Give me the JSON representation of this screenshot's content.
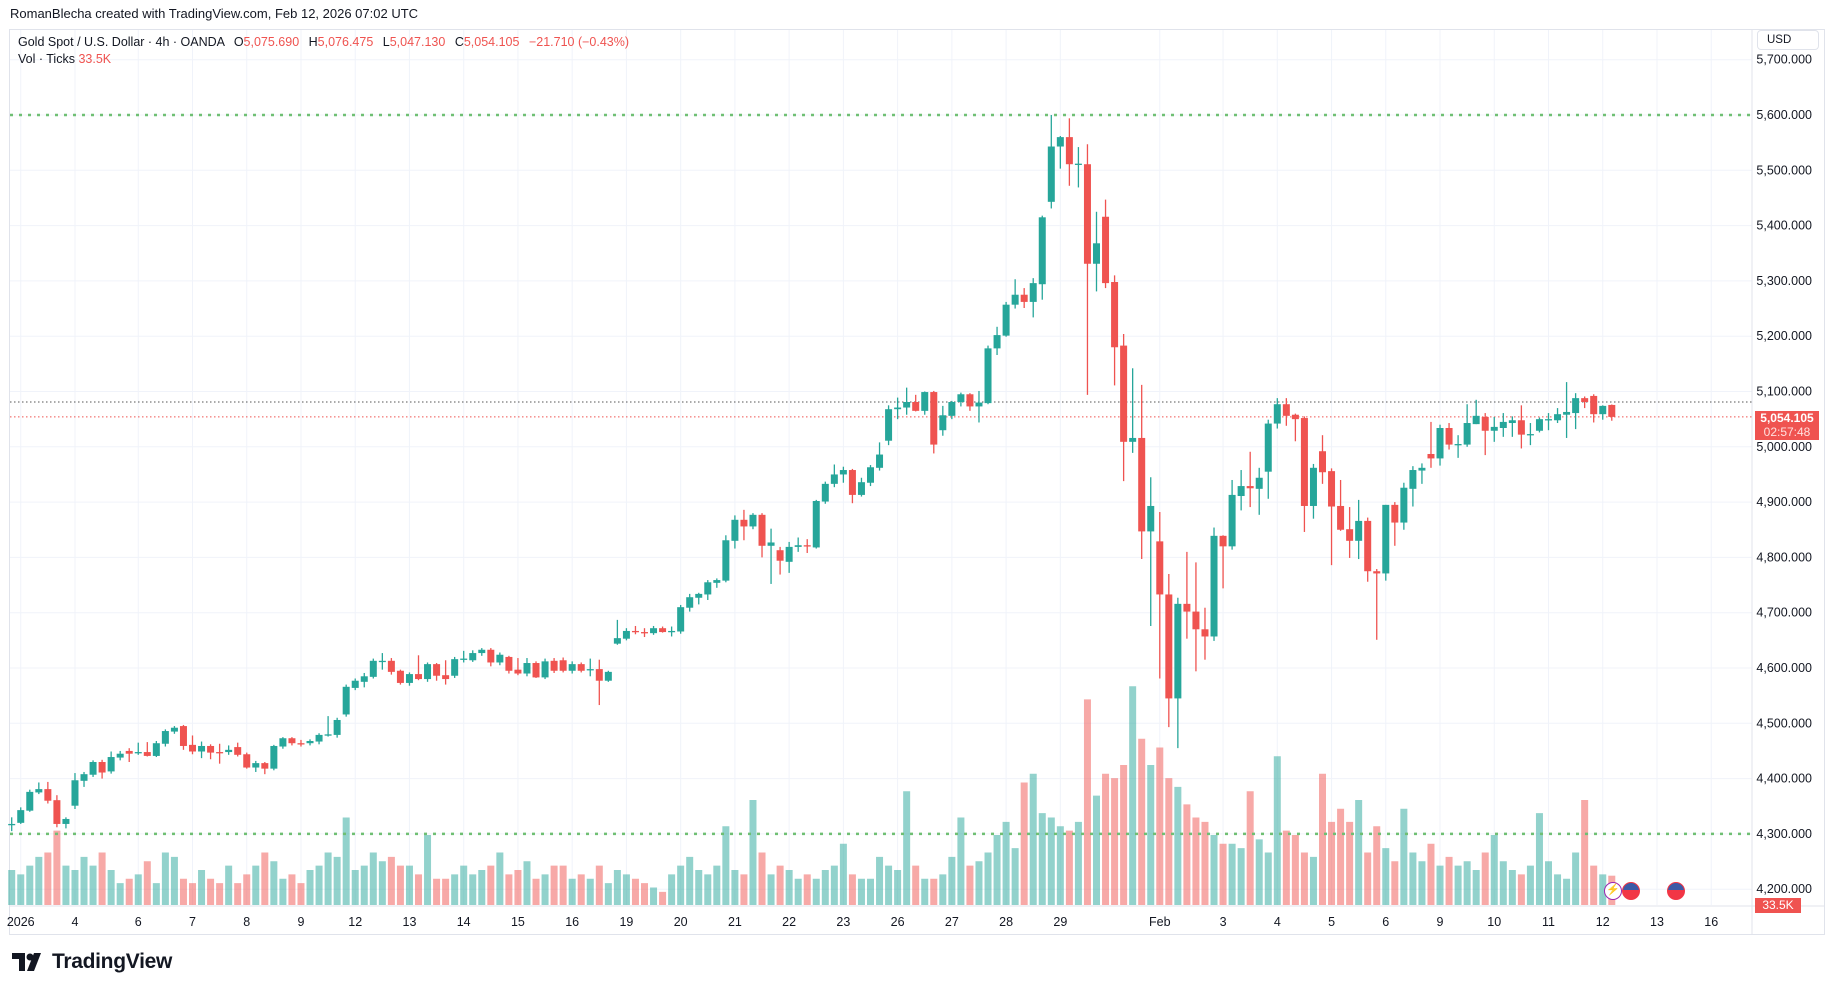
{
  "credit": "RomanBlecha created with TradingView.com, Feb 12, 2026 07:02 UTC",
  "legend": {
    "symbol": "Gold Spot / U.S. Dollar · 4h · OANDA",
    "o_label": "O",
    "o": "5,075.690",
    "h_label": "H",
    "h": "5,076.475",
    "l_label": "L",
    "l": "5,047.130",
    "c_label": "C",
    "c": "5,054.105",
    "change": "−21.710 (−0.43%)",
    "vol_label": "Vol · Ticks",
    "vol": "33.5K"
  },
  "currency": "USD",
  "price_badge": {
    "price": "5,054.105",
    "countdown": "02:57:48"
  },
  "volume_badge": "33.5K",
  "logo_text": "TradingView",
  "colors": {
    "up": "#26a69a",
    "down": "#ef5350",
    "up_volume": "rgba(38,166,154,0.5)",
    "down_volume": "rgba(239,83,80,0.5)",
    "alert_line": "#6fbf73",
    "grid": "#f0f3fa"
  },
  "events": [
    {
      "icon": "lightning-icon",
      "color": "#9c27b0"
    },
    {
      "icon": "us-flag-icon",
      "color": "#f23645"
    },
    {
      "icon": "us-flag-icon",
      "color": "#f23645"
    }
  ],
  "chart_data": {
    "type": "candlestick",
    "title": "Gold Spot / U.S. Dollar · 4h · OANDA",
    "ylabel": "USD",
    "ylim": [
      4200,
      5700
    ],
    "grid": true,
    "y_ticks": [
      "5,700.000",
      "5,600.000",
      "5,500.000",
      "5,400.000",
      "5,300.000",
      "5,200.000",
      "5,100.000",
      "5,000.000",
      "4,900.000",
      "4,800.000",
      "4,700.000",
      "4,600.000",
      "4,500.000",
      "4,400.000",
      "4,300.000",
      "4,200.000"
    ],
    "x_ticks": [
      {
        "label": "2026",
        "candle": 1
      },
      {
        "label": "4",
        "candle": 7
      },
      {
        "label": "6",
        "candle": 14
      },
      {
        "label": "7",
        "candle": 20
      },
      {
        "label": "8",
        "candle": 26
      },
      {
        "label": "9",
        "candle": 32
      },
      {
        "label": "12",
        "candle": 38
      },
      {
        "label": "13",
        "candle": 44
      },
      {
        "label": "14",
        "candle": 50
      },
      {
        "label": "15",
        "candle": 56
      },
      {
        "label": "16",
        "candle": 62
      },
      {
        "label": "19",
        "candle": 68
      },
      {
        "label": "20",
        "candle": 74
      },
      {
        "label": "21",
        "candle": 80
      },
      {
        "label": "22",
        "candle": 86
      },
      {
        "label": "23",
        "candle": 92
      },
      {
        "label": "26",
        "candle": 98
      },
      {
        "label": "27",
        "candle": 104
      },
      {
        "label": "28",
        "candle": 110
      },
      {
        "label": "29",
        "candle": 116
      },
      {
        "label": "Feb",
        "candle": 127
      },
      {
        "label": "3",
        "candle": 134
      },
      {
        "label": "4",
        "candle": 140
      },
      {
        "label": "5",
        "candle": 146
      },
      {
        "label": "6",
        "candle": 152
      },
      {
        "label": "9",
        "candle": 158
      },
      {
        "label": "10",
        "candle": 164
      },
      {
        "label": "11",
        "candle": 170
      },
      {
        "label": "12",
        "candle": 176
      },
      {
        "label": "13",
        "candle": 182
      },
      {
        "label": "16",
        "candle": 188
      }
    ],
    "horizontal_lines": [
      {
        "price": 5600,
        "style": "dotted",
        "color": "#6fbf73"
      },
      {
        "price": 4300,
        "style": "dotted",
        "color": "#6fbf73"
      },
      {
        "price": 5081,
        "style": "dotted",
        "color": "#555555"
      },
      {
        "price": 5054.105,
        "style": "dotted",
        "color": "#ef5350"
      }
    ],
    "ohlc": [
      [
        4317,
        4330,
        4305,
        4318
      ],
      [
        4320,
        4348,
        4318,
        4343
      ],
      [
        4342,
        4380,
        4340,
        4376
      ],
      [
        4375,
        4393,
        4372,
        4381
      ],
      [
        4381,
        4394,
        4355,
        4360
      ],
      [
        4361,
        4370,
        4312,
        4318
      ],
      [
        4318,
        4330,
        4310,
        4327
      ],
      [
        4351,
        4410,
        4345,
        4397
      ],
      [
        4396,
        4412,
        4385,
        4408
      ],
      [
        4407,
        4433,
        4403,
        4430
      ],
      [
        4430,
        4434,
        4400,
        4411
      ],
      [
        4413,
        4449,
        4409,
        4439
      ],
      [
        4438,
        4450,
        4433,
        4445
      ],
      [
        4450,
        4455,
        4430,
        4445
      ],
      [
        4447,
        4465,
        4443,
        4448
      ],
      [
        4448,
        4466,
        4440,
        4441
      ],
      [
        4441,
        4468,
        4439,
        4464
      ],
      [
        4463,
        4489,
        4458,
        4486
      ],
      [
        4485,
        4495,
        4481,
        4492
      ],
      [
        4495,
        4497,
        4452,
        4459
      ],
      [
        4461,
        4478,
        4444,
        4449
      ],
      [
        4449,
        4467,
        4437,
        4459
      ],
      [
        4459,
        4462,
        4435,
        4447
      ],
      [
        4448,
        4463,
        4427,
        4447
      ],
      [
        4448,
        4460,
        4443,
        4452
      ],
      [
        4457,
        4465,
        4440,
        4443
      ],
      [
        4444,
        4447,
        4418,
        4420
      ],
      [
        4420,
        4432,
        4412,
        4428
      ],
      [
        4428,
        4430,
        4408,
        4418
      ],
      [
        4418,
        4461,
        4415,
        4459
      ],
      [
        4458,
        4475,
        4454,
        4473
      ],
      [
        4473,
        4475,
        4460,
        4464
      ],
      [
        4464,
        4470,
        4458,
        4463
      ],
      [
        4464,
        4471,
        4460,
        4468
      ],
      [
        4467,
        4482,
        4462,
        4479
      ],
      [
        4479,
        4513,
        4476,
        4480
      ],
      [
        4479,
        4510,
        4474,
        4506
      ],
      [
        4516,
        4570,
        4512,
        4566
      ],
      [
        4564,
        4581,
        4560,
        4577
      ],
      [
        4575,
        4591,
        4565,
        4585
      ],
      [
        4584,
        4617,
        4581,
        4613
      ],
      [
        4612,
        4627,
        4597,
        4613
      ],
      [
        4613,
        4618,
        4588,
        4593
      ],
      [
        4595,
        4597,
        4570,
        4573
      ],
      [
        4573,
        4592,
        4568,
        4589
      ],
      [
        4589,
        4623,
        4578,
        4580
      ],
      [
        4580,
        4610,
        4575,
        4607
      ],
      [
        4607,
        4609,
        4577,
        4586
      ],
      [
        4587,
        4614,
        4570,
        4580
      ],
      [
        4586,
        4620,
        4582,
        4616
      ],
      [
        4616,
        4631,
        4610,
        4617
      ],
      [
        4614,
        4632,
        4611,
        4627
      ],
      [
        4627,
        4636,
        4622,
        4633
      ],
      [
        4633,
        4636,
        4603,
        4610
      ],
      [
        4610,
        4628,
        4605,
        4624
      ],
      [
        4620,
        4622,
        4590,
        4595
      ],
      [
        4597,
        4618,
        4587,
        4590
      ],
      [
        4590,
        4618,
        4585,
        4609
      ],
      [
        4609,
        4612,
        4582,
        4583
      ],
      [
        4583,
        4617,
        4580,
        4612
      ],
      [
        4613,
        4618,
        4591,
        4595
      ],
      [
        4614,
        4619,
        4592,
        4595
      ],
      [
        4595,
        4612,
        4590,
        4607
      ],
      [
        4607,
        4610,
        4592,
        4595
      ],
      [
        4598,
        4617,
        4585,
        4598
      ],
      [
        4598,
        4615,
        4533,
        4577
      ],
      [
        4577,
        4595,
        4575,
        4593
      ],
      [
        4644,
        4687,
        4642,
        4654
      ],
      [
        4653,
        4672,
        4650,
        4667
      ],
      [
        4667,
        4676,
        4661,
        4666
      ],
      [
        4665,
        4672,
        4656,
        4663
      ],
      [
        4663,
        4676,
        4660,
        4672
      ],
      [
        4672,
        4675,
        4664,
        4665
      ],
      [
        4666,
        4675,
        4657,
        4667
      ],
      [
        4666,
        4714,
        4662,
        4710
      ],
      [
        4709,
        4734,
        4702,
        4728
      ],
      [
        4727,
        4736,
        4715,
        4734
      ],
      [
        4733,
        4759,
        4723,
        4755
      ],
      [
        4754,
        4762,
        4745,
        4759
      ],
      [
        4758,
        4840,
        4755,
        4831
      ],
      [
        4830,
        4876,
        4816,
        4868
      ],
      [
        4868,
        4886,
        4831,
        4856
      ],
      [
        4856,
        4880,
        4851,
        4877
      ],
      [
        4877,
        4880,
        4800,
        4821
      ],
      [
        4821,
        4852,
        4752,
        4827
      ],
      [
        4813,
        4819,
        4769,
        4794
      ],
      [
        4792,
        4828,
        4772,
        4819
      ],
      [
        4819,
        4836,
        4810,
        4822
      ],
      [
        4822,
        4833,
        4808,
        4821
      ],
      [
        4818,
        4904,
        4816,
        4902
      ],
      [
        4901,
        4937,
        4897,
        4933
      ],
      [
        4933,
        4968,
        4927,
        4950
      ],
      [
        4950,
        4964,
        4935,
        4958
      ],
      [
        4958,
        4960,
        4898,
        4913
      ],
      [
        4913,
        4944,
        4910,
        4936
      ],
      [
        4935,
        4967,
        4929,
        4963
      ],
      [
        4962,
        5008,
        4957,
        4986
      ],
      [
        5011,
        5075,
        5003,
        5068
      ],
      [
        5068,
        5089,
        5050,
        5071
      ],
      [
        5071,
        5107,
        5058,
        5081
      ],
      [
        5081,
        5094,
        5064,
        5065
      ],
      [
        5065,
        5100,
        5058,
        5099
      ],
      [
        5099,
        5101,
        4988,
        5004
      ],
      [
        5030,
        5074,
        5020,
        5057
      ],
      [
        5056,
        5083,
        5050,
        5081
      ],
      [
        5081,
        5098,
        5073,
        5095
      ],
      [
        5095,
        5097,
        5065,
        5073
      ],
      [
        5073,
        5101,
        5044,
        5080
      ],
      [
        5079,
        5183,
        5077,
        5178
      ],
      [
        5178,
        5217,
        5166,
        5202
      ],
      [
        5201,
        5262,
        5199,
        5257
      ],
      [
        5257,
        5303,
        5250,
        5275
      ],
      [
        5275,
        5287,
        5251,
        5262
      ],
      [
        5262,
        5305,
        5234,
        5296
      ],
      [
        5294,
        5418,
        5266,
        5415
      ],
      [
        5443,
        5600,
        5431,
        5543
      ],
      [
        5543,
        5562,
        5503,
        5560
      ],
      [
        5560,
        5594,
        5472,
        5511
      ],
      [
        5511,
        5542,
        5469,
        5512
      ],
      [
        5511,
        5547,
        5094,
        5331
      ],
      [
        5331,
        5425,
        5281,
        5368
      ],
      [
        5416,
        5447,
        5287,
        5296
      ],
      [
        5298,
        5310,
        5111,
        5180
      ],
      [
        5183,
        5204,
        4938,
        5009
      ],
      [
        5009,
        5142,
        4989,
        5016
      ],
      [
        5016,
        5112,
        4797,
        4847
      ],
      [
        4847,
        4945,
        4676,
        4893
      ],
      [
        4829,
        4882,
        4581,
        4733
      ],
      [
        4733,
        4770,
        4493,
        4545
      ],
      [
        4545,
        4727,
        4455,
        4716
      ],
      [
        4716,
        4810,
        4653,
        4702
      ],
      [
        4702,
        4791,
        4594,
        4670
      ],
      [
        4670,
        4709,
        4615,
        4657
      ],
      [
        4657,
        4854,
        4649,
        4839
      ],
      [
        4839,
        4840,
        4744,
        4820
      ],
      [
        4820,
        4940,
        4814,
        4913
      ],
      [
        4911,
        4958,
        4885,
        4929
      ],
      [
        4929,
        4991,
        4891,
        4925
      ],
      [
        4924,
        4962,
        4877,
        4944
      ],
      [
        4955,
        5049,
        4906,
        5042
      ],
      [
        5042,
        5088,
        5033,
        5077
      ],
      [
        5077,
        5088,
        5038,
        5056
      ],
      [
        5058,
        5060,
        5010,
        5050
      ],
      [
        5052,
        5055,
        4846,
        4893
      ],
      [
        4893,
        4969,
        4870,
        4962
      ],
      [
        4992,
        5021,
        4933,
        4954
      ],
      [
        4956,
        4961,
        4786,
        4892
      ],
      [
        4893,
        4940,
        4848,
        4850
      ],
      [
        4851,
        4891,
        4799,
        4830
      ],
      [
        4830,
        4904,
        4797,
        4866
      ],
      [
        4866,
        4872,
        4756,
        4775
      ],
      [
        4775,
        4779,
        4651,
        4771
      ],
      [
        4771,
        4895,
        4758,
        4895
      ],
      [
        4895,
        4900,
        4821,
        4863
      ],
      [
        4863,
        4935,
        4850,
        4926
      ],
      [
        4924,
        4965,
        4892,
        4958
      ],
      [
        4957,
        4970,
        4933,
        4962
      ],
      [
        4987,
        5045,
        4962,
        4979
      ],
      [
        4979,
        5040,
        4966,
        5034
      ],
      [
        5034,
        5043,
        4995,
        5004
      ],
      [
        5005,
        5021,
        4980,
        5005
      ],
      [
        5004,
        5077,
        5000,
        5043
      ],
      [
        5041,
        5085,
        5041,
        5056
      ],
      [
        5054,
        5061,
        4985,
        5029
      ],
      [
        5029,
        5054,
        5009,
        5036
      ],
      [
        5034,
        5061,
        5018,
        5045
      ],
      [
        5043,
        5055,
        5018,
        5048
      ],
      [
        5048,
        5075,
        4997,
        5022
      ],
      [
        5023,
        5043,
        5003,
        5023
      ],
      [
        5029,
        5053,
        5026,
        5050
      ],
      [
        5050,
        5061,
        5030,
        5050
      ],
      [
        5048,
        5070,
        5043,
        5059
      ],
      [
        5058,
        5117,
        5016,
        5063
      ],
      [
        5061,
        5097,
        5032,
        5088
      ],
      [
        5088,
        5091,
        5070,
        5081
      ],
      [
        5092,
        5095,
        5044,
        5059
      ],
      [
        5059,
        5075,
        5049,
        5074
      ],
      [
        5075.69,
        5076.475,
        5047.13,
        5054.105
      ]
    ],
    "volume_k": [
      40,
      35,
      45,
      55,
      60,
      85,
      45,
      40,
      55,
      45,
      60,
      40,
      25,
      30,
      35,
      50,
      25,
      60,
      55,
      30,
      25,
      40,
      30,
      25,
      45,
      25,
      35,
      45,
      60,
      50,
      30,
      35,
      25,
      40,
      45,
      60,
      55,
      100,
      40,
      45,
      60,
      50,
      55,
      45,
      45,
      35,
      80,
      30,
      30,
      35,
      45,
      35,
      40,
      45,
      60,
      35,
      40,
      50,
      30,
      35,
      45,
      45,
      30,
      35,
      30,
      45,
      25,
      40,
      35,
      30,
      25,
      20,
      15,
      35,
      45,
      55,
      40,
      35,
      45,
      90,
      40,
      35,
      120,
      60,
      35,
      45,
      40,
      30,
      35,
      30,
      40,
      45,
      70,
      35,
      30,
      30,
      55,
      45,
      40,
      130,
      45,
      30,
      30,
      35,
      55,
      100,
      45,
      50,
      60,
      80,
      95,
      65,
      140,
      150,
      105,
      100,
      90,
      85,
      95,
      235,
      125,
      150,
      145,
      160,
      250,
      190,
      160,
      180,
      145,
      135,
      115,
      100,
      95,
      80,
      70,
      70,
      65,
      130,
      75,
      60,
      170,
      85,
      80,
      60,
      55,
      150,
      95,
      110,
      95,
      120,
      60,
      90,
      65,
      50,
      110,
      60,
      50,
      70,
      45,
      55,
      45,
      50,
      40,
      60,
      80,
      50,
      40,
      35,
      45,
      105,
      50,
      35,
      30,
      60,
      120,
      45,
      35,
      33.5
    ]
  }
}
